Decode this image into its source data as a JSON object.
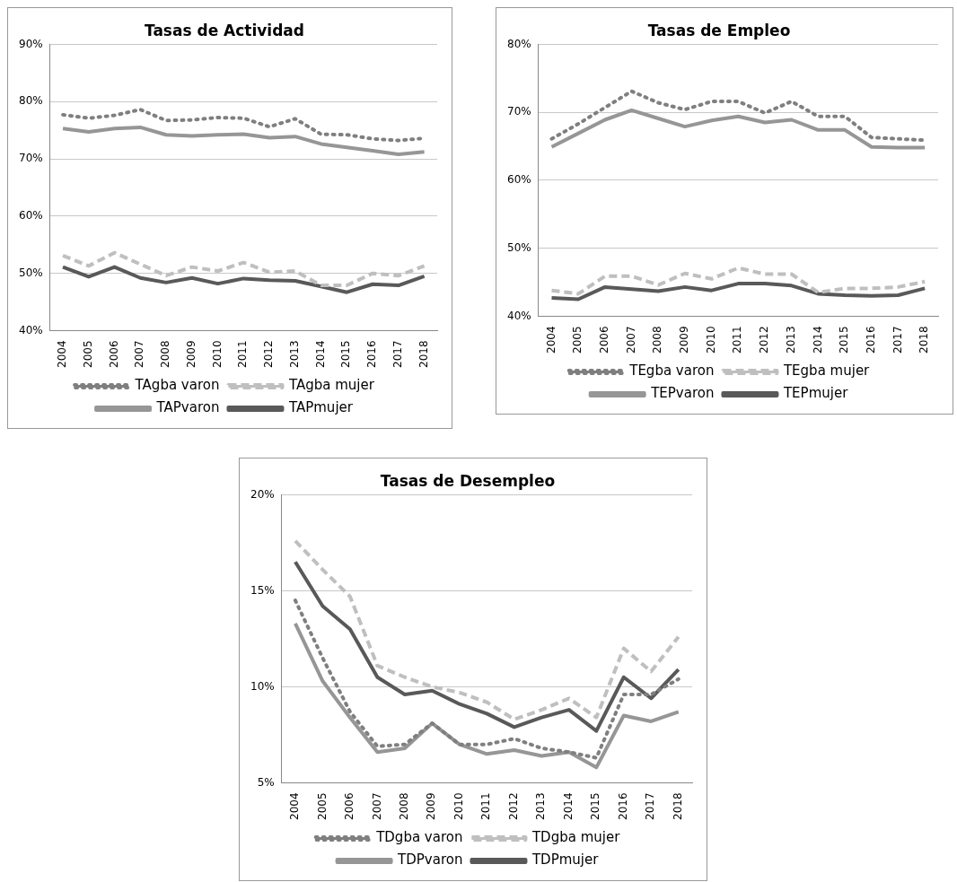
{
  "chart_data": [
    {
      "type": "line",
      "title": "Tasas de Actividad",
      "categories": [
        "2004",
        "2005",
        "2006",
        "2007",
        "2008",
        "2009",
        "2010",
        "2011",
        "2012",
        "2013",
        "2014",
        "2015",
        "2016",
        "2017",
        "2018"
      ],
      "ylim": [
        40,
        90
      ],
      "yticks": [
        {
          "value": 40,
          "label": "40%"
        },
        {
          "value": 50,
          "label": "50%"
        },
        {
          "value": 60,
          "label": "60%"
        },
        {
          "value": 70,
          "label": "70%"
        },
        {
          "value": 80,
          "label": "80%"
        },
        {
          "value": 90,
          "label": "90%"
        }
      ],
      "grid": "y",
      "legend": "bottom",
      "series": [
        {
          "name": "TAgba varon",
          "color": "#7f7f7f",
          "line_style": "dotted",
          "values": [
            77.7,
            77.1,
            77.6,
            78.6,
            76.7,
            76.8,
            77.2,
            77.1,
            75.6,
            77.0,
            74.3,
            74.2,
            73.5,
            73.2,
            73.6
          ]
        },
        {
          "name": "TAgba mujer",
          "color": "#bfbfbf",
          "line_style": "dashed",
          "values": [
            53.1,
            51.3,
            53.6,
            51.6,
            49.6,
            51.1,
            50.4,
            51.9,
            50.2,
            50.4,
            47.9,
            47.9,
            50.0,
            49.6,
            51.3
          ]
        },
        {
          "name": "TAPvaron",
          "color": "#969696",
          "line_style": "solid",
          "values": [
            75.3,
            74.7,
            75.3,
            75.5,
            74.2,
            74.0,
            74.2,
            74.3,
            73.7,
            73.9,
            72.6,
            72.0,
            71.4,
            70.8,
            71.2
          ]
        },
        {
          "name": "TAPmujer",
          "color": "#595959",
          "line_style": "solid",
          "values": [
            51.1,
            49.4,
            51.1,
            49.2,
            48.4,
            49.2,
            48.2,
            49.1,
            48.8,
            48.7,
            47.7,
            46.7,
            48.1,
            47.9,
            49.5
          ]
        }
      ]
    },
    {
      "type": "line",
      "title": "Tasas de Empleo",
      "categories": [
        "2004",
        "2005",
        "2006",
        "2007",
        "2008",
        "2009",
        "2010",
        "2011",
        "2012",
        "2013",
        "2014",
        "2015",
        "2016",
        "2017",
        "2018"
      ],
      "ylim": [
        40,
        80
      ],
      "yticks": [
        {
          "value": 40,
          "label": "40%"
        },
        {
          "value": 50,
          "label": "50%"
        },
        {
          "value": 60,
          "label": "60%"
        },
        {
          "value": 70,
          "label": "70%"
        },
        {
          "value": 80,
          "label": "80%"
        }
      ],
      "grid": "y",
      "legend": "bottom",
      "series": [
        {
          "name": "TEgba varon",
          "color": "#7f7f7f",
          "line_style": "dotted",
          "values": [
            66.1,
            68.3,
            70.7,
            73.1,
            71.4,
            70.4,
            71.6,
            71.6,
            69.9,
            71.6,
            69.4,
            69.4,
            66.3,
            66.1,
            65.9
          ]
        },
        {
          "name": "TEgba mujer",
          "color": "#bfbfbf",
          "line_style": "dashed",
          "values": [
            43.8,
            43.3,
            45.9,
            45.9,
            44.6,
            46.3,
            45.5,
            47.1,
            46.2,
            46.2,
            43.5,
            44.1,
            44.1,
            44.3,
            45.1
          ]
        },
        {
          "name": "TEPvaron",
          "color": "#969696",
          "line_style": "solid",
          "values": [
            64.9,
            66.9,
            68.9,
            70.3,
            69.1,
            67.9,
            68.8,
            69.4,
            68.5,
            68.9,
            67.4,
            67.4,
            64.9,
            64.8,
            64.8
          ]
        },
        {
          "name": "TEPmujer",
          "color": "#595959",
          "line_style": "solid",
          "values": [
            42.7,
            42.5,
            44.3,
            44.0,
            43.7,
            44.3,
            43.8,
            44.8,
            44.8,
            44.5,
            43.3,
            43.1,
            43.0,
            43.1,
            44.1
          ]
        }
      ]
    },
    {
      "type": "line",
      "title": "Tasas de Desempleo",
      "categories": [
        "2004",
        "2005",
        "2006",
        "2007",
        "2008",
        "2009",
        "2010",
        "2011",
        "2012",
        "2013",
        "2014",
        "2015",
        "2016",
        "2017",
        "2018"
      ],
      "ylim": [
        5,
        20
      ],
      "yticks": [
        {
          "value": 5,
          "label": "5%"
        },
        {
          "value": 10,
          "label": "10%"
        },
        {
          "value": 15,
          "label": "15%"
        },
        {
          "value": 20,
          "label": "20%"
        }
      ],
      "grid": "y",
      "legend": "bottom",
      "series": [
        {
          "name": "TDgba varon",
          "color": "#7f7f7f",
          "line_style": "dotted",
          "values": [
            14.5,
            11.5,
            8.7,
            6.9,
            7.0,
            8.1,
            7.0,
            7.0,
            7.3,
            6.8,
            6.6,
            6.3,
            9.6,
            9.6,
            10.4
          ]
        },
        {
          "name": "TDgba mujer",
          "color": "#bfbfbf",
          "line_style": "dashed",
          "values": [
            17.6,
            16.1,
            14.7,
            11.1,
            10.5,
            10.0,
            9.7,
            9.2,
            8.3,
            8.8,
            9.4,
            8.4,
            12.0,
            10.8,
            12.6
          ]
        },
        {
          "name": "TDPvaron",
          "color": "#969696",
          "line_style": "solid",
          "values": [
            13.3,
            10.3,
            8.4,
            6.6,
            6.8,
            8.1,
            7.0,
            6.5,
            6.7,
            6.4,
            6.6,
            5.8,
            8.5,
            8.2,
            8.7
          ]
        },
        {
          "name": "TDPmujer",
          "color": "#595959",
          "line_style": "solid",
          "values": [
            16.5,
            14.2,
            13.0,
            10.5,
            9.6,
            9.8,
            9.1,
            8.6,
            7.9,
            8.4,
            8.8,
            7.7,
            10.5,
            9.4,
            10.9
          ]
        }
      ]
    }
  ]
}
